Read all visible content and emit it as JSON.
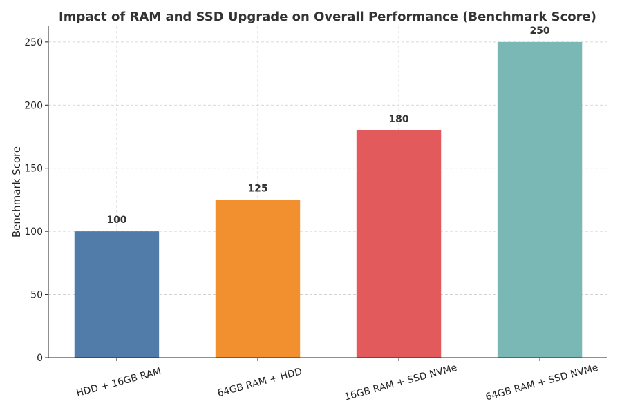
{
  "chart_data": {
    "type": "bar",
    "title": "Impact of RAM and SSD Upgrade on Overall Performance (Benchmark Score)",
    "xlabel": "",
    "ylabel": "Benchmark Score",
    "categories": [
      "HDD + 16GB RAM",
      "64GB RAM + HDD",
      "16GB RAM + SSD NVMe",
      "64GB RAM + SSD NVMe"
    ],
    "values": [
      100,
      125,
      180,
      250
    ],
    "data_labels": [
      "100",
      "125",
      "180",
      "250"
    ],
    "colors": [
      "#4e79a7",
      "#f28e2b",
      "#e15759",
      "#76b7b2"
    ],
    "ylim": [
      0,
      262.5
    ],
    "yticks": [
      0,
      50,
      100,
      150,
      200,
      250
    ],
    "grid": true,
    "legend": "none"
  }
}
